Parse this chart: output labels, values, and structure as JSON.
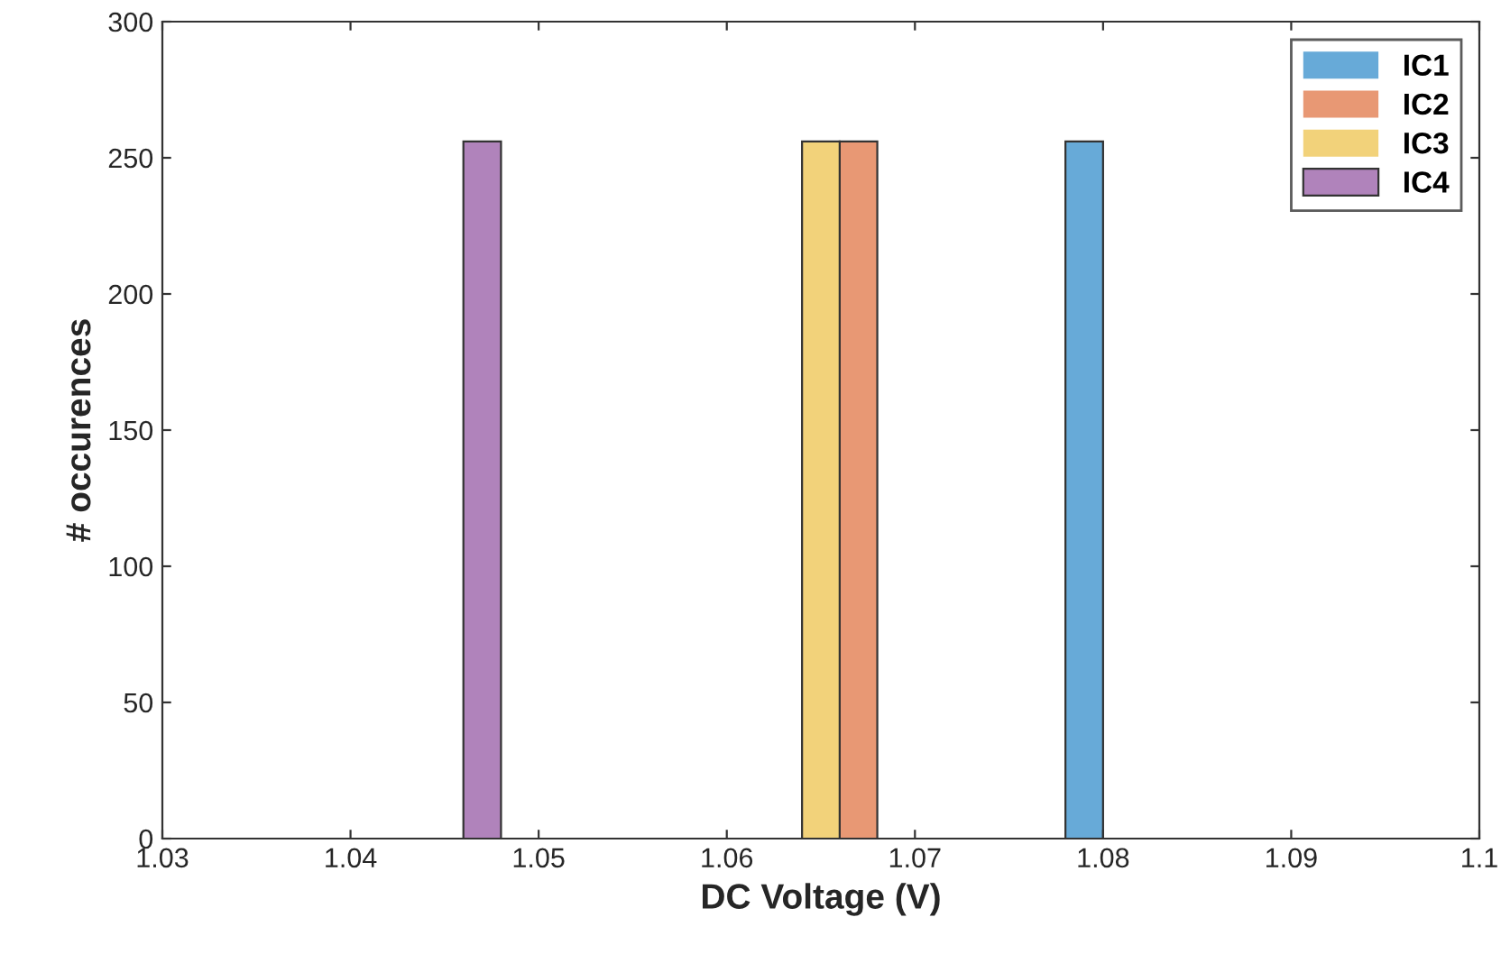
{
  "chart_data": {
    "type": "histogram",
    "xlabel": "DC Voltage (V)",
    "ylabel": "# occurences",
    "bins": [
      1.046,
      1.048,
      1.05,
      1.052,
      1.054,
      1.056,
      1.058,
      1.06,
      1.062,
      1.064,
      1.066,
      1.068,
      1.07,
      1.072,
      1.074,
      1.076,
      1.078,
      1.08
    ],
    "series": [
      {
        "name": "IC1",
        "color": "#67aad8",
        "values": [
          0,
          0,
          0,
          0,
          0,
          0,
          0,
          0,
          0,
          0,
          0,
          0,
          0,
          0,
          0,
          0,
          256
        ]
      },
      {
        "name": "IC2",
        "color": "#e89874",
        "values": [
          0,
          0,
          0,
          0,
          0,
          0,
          0,
          0,
          0,
          0,
          256,
          0,
          0,
          0,
          0,
          0,
          0
        ]
      },
      {
        "name": "IC3",
        "color": "#f2d27a",
        "values": [
          0,
          0,
          0,
          0,
          0,
          0,
          0,
          0,
          0,
          256,
          0,
          0,
          0,
          0,
          0,
          0,
          0
        ]
      },
      {
        "name": "IC4",
        "color": "#b083bb",
        "values": [
          256,
          0,
          0,
          0,
          0,
          0,
          0,
          0,
          0,
          0,
          0,
          0,
          0,
          0,
          0,
          0,
          0
        ]
      }
    ],
    "xlim": [
      1.03,
      1.1
    ],
    "xticks": [
      1.03,
      1.04,
      1.05,
      1.06,
      1.07,
      1.08,
      1.09,
      1.1
    ],
    "ylim": [
      0,
      300
    ],
    "yticks": [
      0,
      50,
      100,
      150,
      200,
      250,
      300
    ],
    "legend": "top right"
  }
}
